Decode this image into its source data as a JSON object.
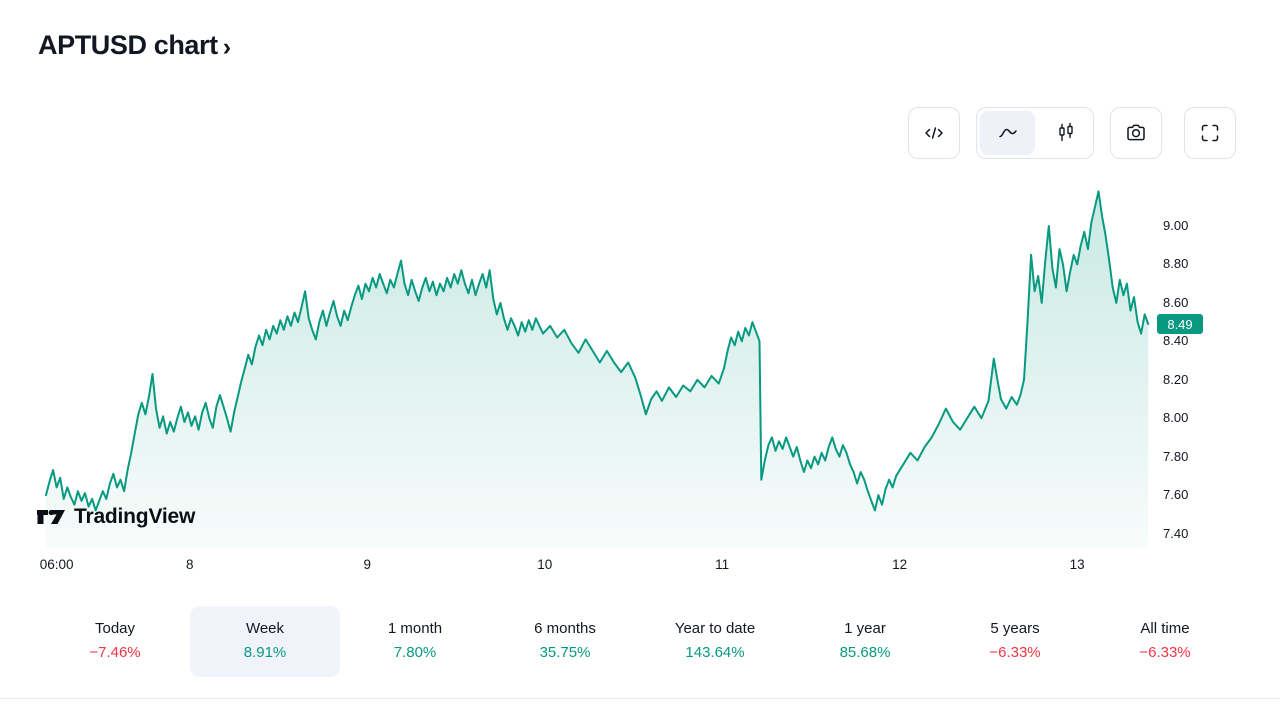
{
  "header": {
    "title": "APTUSD chart",
    "chevron": "›"
  },
  "toolbar": {
    "code_button": "code-icon",
    "style_area": "area-chart-icon",
    "style_candles": "candles-icon",
    "camera_button": "camera-icon",
    "fullscreen_button": "fullscreen-icon"
  },
  "colors": {
    "accent": "#089981",
    "positive": "#089981",
    "negative": "#f23645",
    "selected_bg": "#f0f3fa",
    "toolbar_selected_bg": "#eef1f8",
    "border": "#e0e3eb",
    "text": "#131722"
  },
  "watermark": {
    "brand": "TradingView"
  },
  "chart_data": {
    "type": "area",
    "symbol": "APTUSD",
    "title": "APTUSD chart",
    "line_color": "#089981",
    "current_price": "8.49",
    "grid": false,
    "legend": "none",
    "x_domain": [
      7.19,
      13.41
    ],
    "y_domain": [
      7.4,
      9.0
    ],
    "y_ticks": [
      {
        "label": "9.00",
        "value": 9.0
      },
      {
        "label": "8.80",
        "value": 8.8
      },
      {
        "label": "8.60",
        "value": 8.6
      },
      {
        "label": "8.40",
        "value": 8.4
      },
      {
        "label": "8.20",
        "value": 8.2
      },
      {
        "label": "8.00",
        "value": 8.0
      },
      {
        "label": "7.80",
        "value": 7.8
      },
      {
        "label": "7.60",
        "value": 7.6
      },
      {
        "label": "7.40",
        "value": 7.4
      }
    ],
    "x_ticks": [
      {
        "label": "06:00",
        "day": 7.25
      },
      {
        "label": "8",
        "day": 8
      },
      {
        "label": "9",
        "day": 9
      },
      {
        "label": "10",
        "day": 10
      },
      {
        "label": "11",
        "day": 11
      },
      {
        "label": "12",
        "day": 12
      },
      {
        "label": "13",
        "day": 13
      }
    ],
    "points": [
      [
        7.19,
        7.6
      ],
      [
        7.21,
        7.67
      ],
      [
        7.23,
        7.73
      ],
      [
        7.25,
        7.64
      ],
      [
        7.27,
        7.69
      ],
      [
        7.29,
        7.58
      ],
      [
        7.31,
        7.64
      ],
      [
        7.33,
        7.59
      ],
      [
        7.35,
        7.55
      ],
      [
        7.37,
        7.62
      ],
      [
        7.39,
        7.57
      ],
      [
        7.41,
        7.61
      ],
      [
        7.43,
        7.54
      ],
      [
        7.45,
        7.58
      ],
      [
        7.47,
        7.52
      ],
      [
        7.49,
        7.57
      ],
      [
        7.51,
        7.62
      ],
      [
        7.53,
        7.58
      ],
      [
        7.55,
        7.66
      ],
      [
        7.57,
        7.71
      ],
      [
        7.59,
        7.64
      ],
      [
        7.61,
        7.68
      ],
      [
        7.63,
        7.62
      ],
      [
        7.65,
        7.73
      ],
      [
        7.67,
        7.82
      ],
      [
        7.69,
        7.92
      ],
      [
        7.71,
        8.02
      ],
      [
        7.73,
        8.08
      ],
      [
        7.75,
        8.02
      ],
      [
        7.77,
        8.11
      ],
      [
        7.79,
        8.23
      ],
      [
        7.81,
        8.05
      ],
      [
        7.83,
        7.95
      ],
      [
        7.85,
        8.01
      ],
      [
        7.87,
        7.92
      ],
      [
        7.89,
        7.98
      ],
      [
        7.91,
        7.93
      ],
      [
        7.93,
        8.0
      ],
      [
        7.95,
        8.06
      ],
      [
        7.97,
        7.98
      ],
      [
        7.99,
        8.03
      ],
      [
        8.01,
        7.96
      ],
      [
        8.03,
        8.01
      ],
      [
        8.05,
        7.94
      ],
      [
        8.07,
        8.03
      ],
      [
        8.09,
        8.08
      ],
      [
        8.11,
        8.0
      ],
      [
        8.13,
        7.95
      ],
      [
        8.15,
        8.06
      ],
      [
        8.17,
        8.12
      ],
      [
        8.19,
        8.06
      ],
      [
        8.21,
        8.0
      ],
      [
        8.23,
        7.93
      ],
      [
        8.25,
        8.03
      ],
      [
        8.27,
        8.11
      ],
      [
        8.29,
        8.19
      ],
      [
        8.31,
        8.26
      ],
      [
        8.33,
        8.33
      ],
      [
        8.35,
        8.28
      ],
      [
        8.37,
        8.37
      ],
      [
        8.39,
        8.43
      ],
      [
        8.41,
        8.38
      ],
      [
        8.43,
        8.46
      ],
      [
        8.45,
        8.41
      ],
      [
        8.47,
        8.48
      ],
      [
        8.49,
        8.44
      ],
      [
        8.51,
        8.51
      ],
      [
        8.53,
        8.46
      ],
      [
        8.55,
        8.53
      ],
      [
        8.57,
        8.48
      ],
      [
        8.59,
        8.55
      ],
      [
        8.61,
        8.5
      ],
      [
        8.63,
        8.58
      ],
      [
        8.65,
        8.66
      ],
      [
        8.67,
        8.52
      ],
      [
        8.69,
        8.46
      ],
      [
        8.71,
        8.41
      ],
      [
        8.73,
        8.5
      ],
      [
        8.75,
        8.56
      ],
      [
        8.77,
        8.48
      ],
      [
        8.79,
        8.55
      ],
      [
        8.81,
        8.61
      ],
      [
        8.83,
        8.53
      ],
      [
        8.85,
        8.48
      ],
      [
        8.87,
        8.56
      ],
      [
        8.89,
        8.51
      ],
      [
        8.91,
        8.58
      ],
      [
        8.93,
        8.64
      ],
      [
        8.95,
        8.69
      ],
      [
        8.97,
        8.62
      ],
      [
        8.99,
        8.7
      ],
      [
        9.01,
        8.66
      ],
      [
        9.03,
        8.73
      ],
      [
        9.05,
        8.68
      ],
      [
        9.07,
        8.75
      ],
      [
        9.09,
        8.7
      ],
      [
        9.11,
        8.65
      ],
      [
        9.13,
        8.72
      ],
      [
        9.15,
        8.68
      ],
      [
        9.17,
        8.75
      ],
      [
        9.19,
        8.82
      ],
      [
        9.21,
        8.7
      ],
      [
        9.23,
        8.64
      ],
      [
        9.25,
        8.72
      ],
      [
        9.27,
        8.66
      ],
      [
        9.29,
        8.61
      ],
      [
        9.31,
        8.68
      ],
      [
        9.33,
        8.73
      ],
      [
        9.35,
        8.66
      ],
      [
        9.37,
        8.71
      ],
      [
        9.39,
        8.64
      ],
      [
        9.41,
        8.7
      ],
      [
        9.43,
        8.66
      ],
      [
        9.45,
        8.73
      ],
      [
        9.47,
        8.68
      ],
      [
        9.49,
        8.75
      ],
      [
        9.51,
        8.7
      ],
      [
        9.53,
        8.77
      ],
      [
        9.55,
        8.7
      ],
      [
        9.57,
        8.65
      ],
      [
        9.59,
        8.72
      ],
      [
        9.61,
        8.64
      ],
      [
        9.63,
        8.7
      ],
      [
        9.65,
        8.75
      ],
      [
        9.67,
        8.68
      ],
      [
        9.69,
        8.77
      ],
      [
        9.71,
        8.62
      ],
      [
        9.73,
        8.54
      ],
      [
        9.75,
        8.6
      ],
      [
        9.77,
        8.52
      ],
      [
        9.79,
        8.46
      ],
      [
        9.81,
        8.52
      ],
      [
        9.83,
        8.48
      ],
      [
        9.85,
        8.43
      ],
      [
        9.87,
        8.5
      ],
      [
        9.89,
        8.45
      ],
      [
        9.91,
        8.51
      ],
      [
        9.93,
        8.46
      ],
      [
        9.95,
        8.52
      ],
      [
        9.97,
        8.48
      ],
      [
        9.99,
        8.44
      ],
      [
        10.03,
        8.48
      ],
      [
        10.07,
        8.42
      ],
      [
        10.11,
        8.46
      ],
      [
        10.15,
        8.39
      ],
      [
        10.19,
        8.34
      ],
      [
        10.23,
        8.41
      ],
      [
        10.27,
        8.35
      ],
      [
        10.31,
        8.29
      ],
      [
        10.35,
        8.35
      ],
      [
        10.39,
        8.29
      ],
      [
        10.43,
        8.24
      ],
      [
        10.47,
        8.29
      ],
      [
        10.51,
        8.21
      ],
      [
        10.54,
        8.12
      ],
      [
        10.57,
        8.02
      ],
      [
        10.6,
        8.1
      ],
      [
        10.63,
        8.14
      ],
      [
        10.66,
        8.09
      ],
      [
        10.7,
        8.16
      ],
      [
        10.74,
        8.11
      ],
      [
        10.78,
        8.17
      ],
      [
        10.82,
        8.14
      ],
      [
        10.86,
        8.2
      ],
      [
        10.9,
        8.16
      ],
      [
        10.94,
        8.22
      ],
      [
        10.98,
        8.18
      ],
      [
        11.01,
        8.26
      ],
      [
        11.03,
        8.35
      ],
      [
        11.05,
        8.42
      ],
      [
        11.07,
        8.38
      ],
      [
        11.09,
        8.45
      ],
      [
        11.11,
        8.4
      ],
      [
        11.13,
        8.47
      ],
      [
        11.15,
        8.43
      ],
      [
        11.17,
        8.5
      ],
      [
        11.19,
        8.45
      ],
      [
        11.21,
        8.4
      ],
      [
        11.22,
        7.68
      ],
      [
        11.24,
        7.78
      ],
      [
        11.26,
        7.86
      ],
      [
        11.28,
        7.9
      ],
      [
        11.3,
        7.83
      ],
      [
        11.32,
        7.88
      ],
      [
        11.34,
        7.84
      ],
      [
        11.36,
        7.9
      ],
      [
        11.38,
        7.85
      ],
      [
        11.4,
        7.8
      ],
      [
        11.42,
        7.85
      ],
      [
        11.44,
        7.78
      ],
      [
        11.46,
        7.72
      ],
      [
        11.48,
        7.78
      ],
      [
        11.5,
        7.74
      ],
      [
        11.52,
        7.8
      ],
      [
        11.54,
        7.76
      ],
      [
        11.56,
        7.82
      ],
      [
        11.58,
        7.78
      ],
      [
        11.6,
        7.85
      ],
      [
        11.62,
        7.9
      ],
      [
        11.64,
        7.84
      ],
      [
        11.66,
        7.8
      ],
      [
        11.68,
        7.86
      ],
      [
        11.7,
        7.82
      ],
      [
        11.72,
        7.76
      ],
      [
        11.74,
        7.72
      ],
      [
        11.76,
        7.66
      ],
      [
        11.78,
        7.72
      ],
      [
        11.8,
        7.68
      ],
      [
        11.82,
        7.62
      ],
      [
        11.84,
        7.57
      ],
      [
        11.86,
        7.52
      ],
      [
        11.88,
        7.6
      ],
      [
        11.9,
        7.55
      ],
      [
        11.92,
        7.63
      ],
      [
        11.94,
        7.68
      ],
      [
        11.96,
        7.64
      ],
      [
        11.98,
        7.7
      ],
      [
        12.02,
        7.76
      ],
      [
        12.06,
        7.82
      ],
      [
        12.1,
        7.78
      ],
      [
        12.14,
        7.85
      ],
      [
        12.18,
        7.9
      ],
      [
        12.22,
        7.97
      ],
      [
        12.26,
        8.05
      ],
      [
        12.3,
        7.98
      ],
      [
        12.34,
        7.94
      ],
      [
        12.38,
        8.0
      ],
      [
        12.42,
        8.06
      ],
      [
        12.46,
        8.0
      ],
      [
        12.5,
        8.09
      ],
      [
        12.53,
        8.31
      ],
      [
        12.55,
        8.2
      ],
      [
        12.57,
        8.1
      ],
      [
        12.6,
        8.05
      ],
      [
        12.63,
        8.11
      ],
      [
        12.66,
        8.07
      ],
      [
        12.68,
        8.12
      ],
      [
        12.7,
        8.2
      ],
      [
        12.72,
        8.5
      ],
      [
        12.74,
        8.85
      ],
      [
        12.76,
        8.66
      ],
      [
        12.78,
        8.74
      ],
      [
        12.8,
        8.6
      ],
      [
        12.82,
        8.82
      ],
      [
        12.84,
        9.0
      ],
      [
        12.86,
        8.78
      ],
      [
        12.88,
        8.68
      ],
      [
        12.9,
        8.88
      ],
      [
        12.92,
        8.8
      ],
      [
        12.94,
        8.66
      ],
      [
        12.96,
        8.76
      ],
      [
        12.98,
        8.85
      ],
      [
        13.0,
        8.8
      ],
      [
        13.02,
        8.9
      ],
      [
        13.04,
        8.97
      ],
      [
        13.06,
        8.88
      ],
      [
        13.08,
        9.02
      ],
      [
        13.1,
        9.1
      ],
      [
        13.12,
        9.18
      ],
      [
        13.14,
        9.05
      ],
      [
        13.16,
        8.95
      ],
      [
        13.18,
        8.82
      ],
      [
        13.2,
        8.68
      ],
      [
        13.22,
        8.6
      ],
      [
        13.24,
        8.72
      ],
      [
        13.26,
        8.64
      ],
      [
        13.28,
        8.7
      ],
      [
        13.3,
        8.56
      ],
      [
        13.32,
        8.63
      ],
      [
        13.34,
        8.5
      ],
      [
        13.36,
        8.44
      ],
      [
        13.38,
        8.54
      ],
      [
        13.4,
        8.49
      ]
    ]
  },
  "ranges": [
    {
      "label": "Today",
      "change": "−7.46%",
      "trend": "down",
      "selected": false
    },
    {
      "label": "Week",
      "change": "8.91%",
      "trend": "up",
      "selected": true
    },
    {
      "label": "1 month",
      "change": "7.80%",
      "trend": "up",
      "selected": false
    },
    {
      "label": "6 months",
      "change": "35.75%",
      "trend": "up",
      "selected": false
    },
    {
      "label": "Year to date",
      "change": "143.64%",
      "trend": "up",
      "selected": false
    },
    {
      "label": "1 year",
      "change": "85.68%",
      "trend": "up",
      "selected": false
    },
    {
      "label": "5 years",
      "change": "−6.33%",
      "trend": "down",
      "selected": false
    },
    {
      "label": "All time",
      "change": "−6.33%",
      "trend": "down",
      "selected": false
    }
  ]
}
